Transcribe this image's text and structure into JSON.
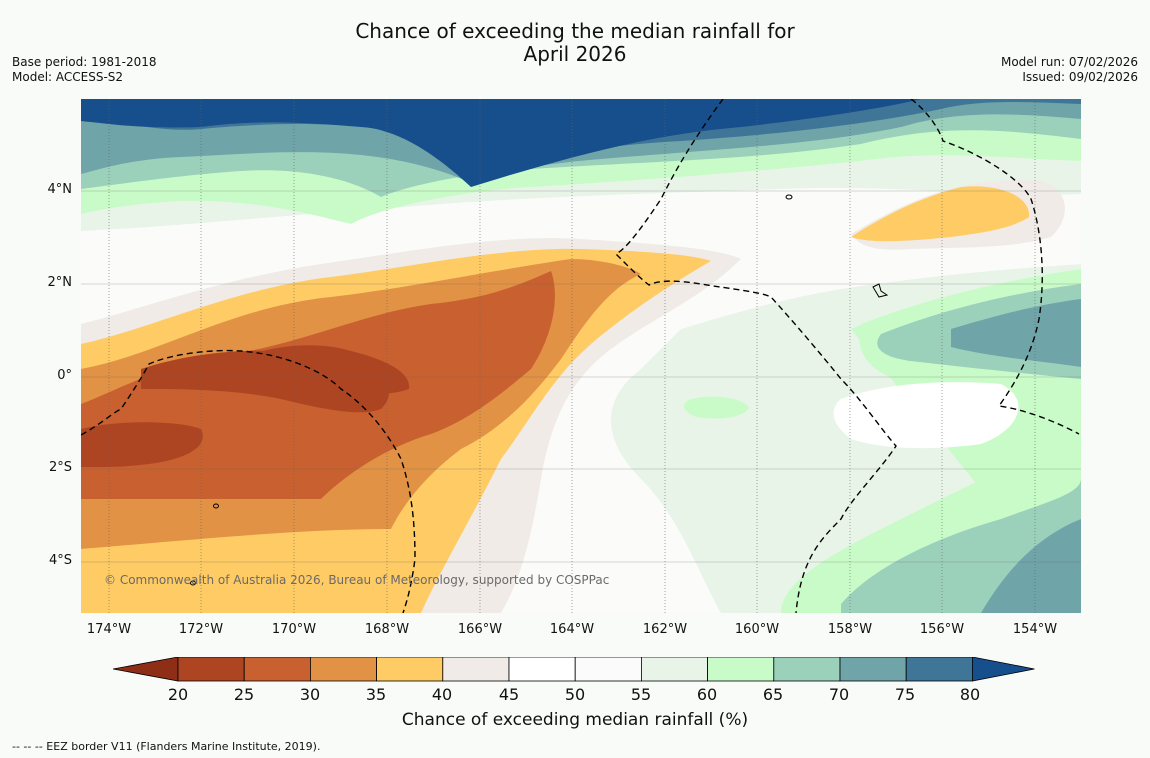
{
  "title": {
    "line1": "Chance of exceeding the median rainfall for",
    "line2": "April 2026"
  },
  "meta_left": {
    "base_period": "Base period: 1981-2018",
    "model": "Model: ACCESS-S2"
  },
  "meta_right": {
    "model_run": "Model run: 07/02/2026",
    "issued": "Issued: 09/02/2026"
  },
  "lat_labels": [
    "4°N",
    "2°N",
    "0°",
    "2°S",
    "4°S"
  ],
  "lon_labels": [
    "174°W",
    "172°W",
    "170°W",
    "168°W",
    "166°W",
    "164°W",
    "162°W",
    "160°W",
    "158°W",
    "156°W",
    "154°W"
  ],
  "copyright": "© Commonwealth of Australia 2026, Bureau of Meteorology, supported by COSPPac",
  "colorbar": {
    "ticks": [
      "20",
      "25",
      "30",
      "35",
      "40",
      "45",
      "50",
      "55",
      "60",
      "65",
      "70",
      "75",
      "80"
    ],
    "label": "Chance of exceeding median rainfall (%)",
    "colors": [
      "#8e2e16",
      "#ae4522",
      "#c96030",
      "#e19245",
      "#fecb65",
      "#f0ebe6",
      "#ffffff",
      "#fbfbfb",
      "#e9f4e9",
      "#c9fbc9",
      "#9bd1bb",
      "#6fa4a9",
      "#3f7698",
      "#174e8c"
    ]
  },
  "legend_text": "--  --  -- EEZ border V11 (Flanders Marine Institute, 2019)."
}
